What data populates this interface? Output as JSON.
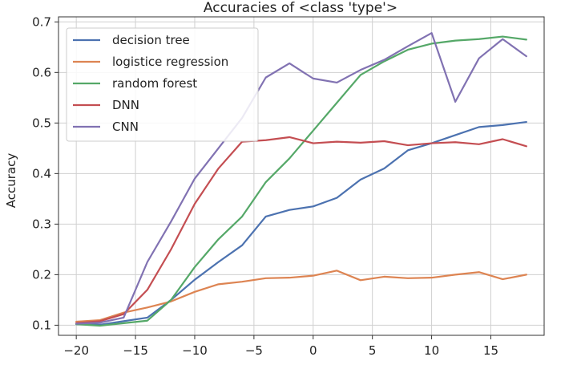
{
  "chart_data": {
    "type": "line",
    "title": "Accuracies of <class 'type'>",
    "xlabel": "",
    "ylabel": "Accuracy",
    "xlim": [
      -21.5,
      19.5
    ],
    "ylim": [
      0.08,
      0.71
    ],
    "xticks": [
      -20,
      -15,
      -10,
      -5,
      0,
      5,
      10,
      15
    ],
    "xtick_labels": [
      "−20",
      "−15",
      "−10",
      "−5",
      "0",
      "5",
      "10",
      "15"
    ],
    "yticks": [
      0.1,
      0.2,
      0.3,
      0.4,
      0.5,
      0.6,
      0.7
    ],
    "ytick_labels": [
      "0.1",
      "0.2",
      "0.3",
      "0.4",
      "0.5",
      "0.6",
      "0.7"
    ],
    "grid": true,
    "legend_position": "top-left",
    "x": [
      -20,
      -18,
      -16,
      -14,
      -12,
      -10,
      -8,
      -6,
      -4,
      -2,
      0,
      2,
      4,
      6,
      8,
      10,
      12,
      14,
      16,
      18
    ],
    "series": [
      {
        "name": "decision tree",
        "color": "#4c72b0",
        "values": [
          0.102,
          0.101,
          0.108,
          0.115,
          0.15,
          0.19,
          0.225,
          0.258,
          0.315,
          0.328,
          0.335,
          0.352,
          0.388,
          0.41,
          0.446,
          0.46,
          0.476,
          0.492,
          0.496,
          0.502
        ]
      },
      {
        "name": "logistice regression",
        "color": "#dd8452",
        "values": [
          0.107,
          0.11,
          0.125,
          0.135,
          0.147,
          0.166,
          0.181,
          0.186,
          0.193,
          0.194,
          0.198,
          0.208,
          0.189,
          0.196,
          0.193,
          0.194,
          0.2,
          0.205,
          0.191,
          0.2
        ]
      },
      {
        "name": "random forest",
        "color": "#55a868",
        "values": [
          0.102,
          0.099,
          0.104,
          0.109,
          0.15,
          0.215,
          0.27,
          0.315,
          0.383,
          0.43,
          0.485,
          0.54,
          0.595,
          0.622,
          0.645,
          0.657,
          0.663,
          0.666,
          0.671,
          0.665
        ]
      },
      {
        "name": "DNN",
        "color": "#c44e52",
        "values": [
          0.104,
          0.108,
          0.122,
          0.17,
          0.25,
          0.34,
          0.41,
          0.463,
          0.466,
          0.472,
          0.46,
          0.463,
          0.461,
          0.464,
          0.456,
          0.46,
          0.462,
          0.458,
          0.468,
          0.454
        ]
      },
      {
        "name": "CNN",
        "color": "#8172b2",
        "values": [
          0.103,
          0.105,
          0.115,
          0.225,
          0.305,
          0.39,
          0.45,
          0.51,
          0.59,
          0.618,
          0.588,
          0.58,
          0.605,
          0.625,
          0.652,
          0.678,
          0.542,
          0.628,
          0.666,
          0.632
        ]
      }
    ]
  }
}
